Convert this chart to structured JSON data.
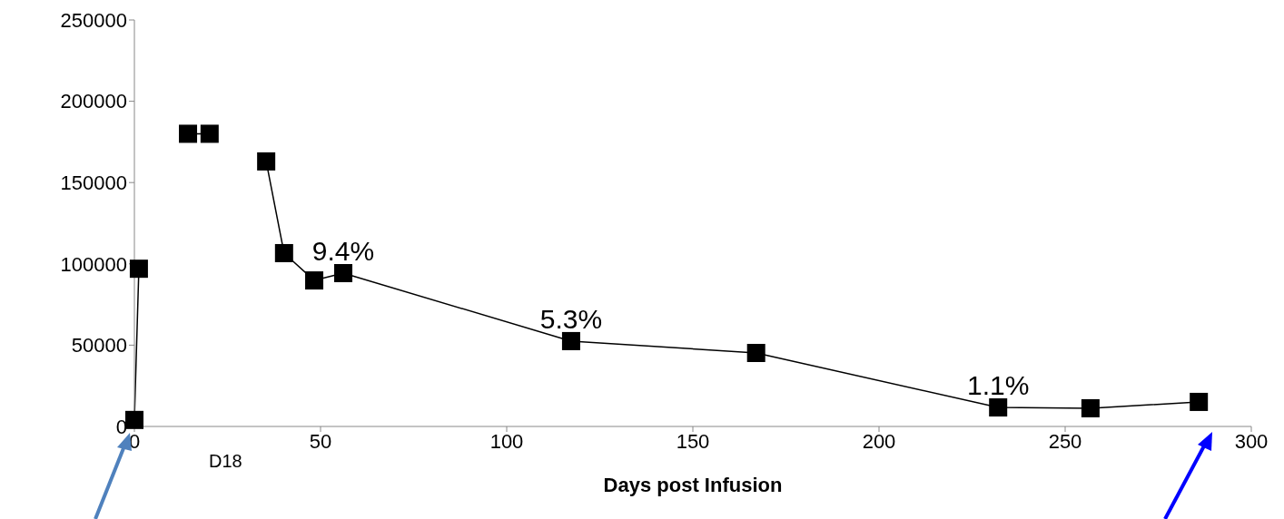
{
  "chart_data": {
    "type": "line",
    "xlabel": "Days post Infusion",
    "x": [
      0,
      1.2,
      7,
      14.4,
      20.2,
      28,
      35.4,
      40.2,
      48.3,
      56.1,
      117.3,
      167,
      232,
      256.8,
      285.9
    ],
    "series": [
      {
        "color": "#000000",
        "values": [
          4000,
          97000,
          null,
          180000,
          180000,
          null,
          163000,
          106600,
          89800,
          94300,
          52500,
          45200,
          11700,
          11200,
          15100
        ]
      }
    ],
    "xlim": [
      0,
      300
    ],
    "xticks": [
      0,
      50,
      100,
      150,
      200,
      250,
      300
    ],
    "ylim": [
      0,
      250000
    ],
    "yticks": [
      0,
      50000,
      100000,
      150000,
      200000,
      250000
    ],
    "grid": false,
    "legend": false,
    "marker": "square",
    "line_style": "solid",
    "annotations": [
      {
        "text": "9.4%",
        "x": 56.1,
        "y": 94300
      },
      {
        "text": "5.3%",
        "x": 117.3,
        "y": 52500
      },
      {
        "text": "1.1%",
        "x": 232,
        "y": 11700
      },
      "D18"
    ]
  }
}
